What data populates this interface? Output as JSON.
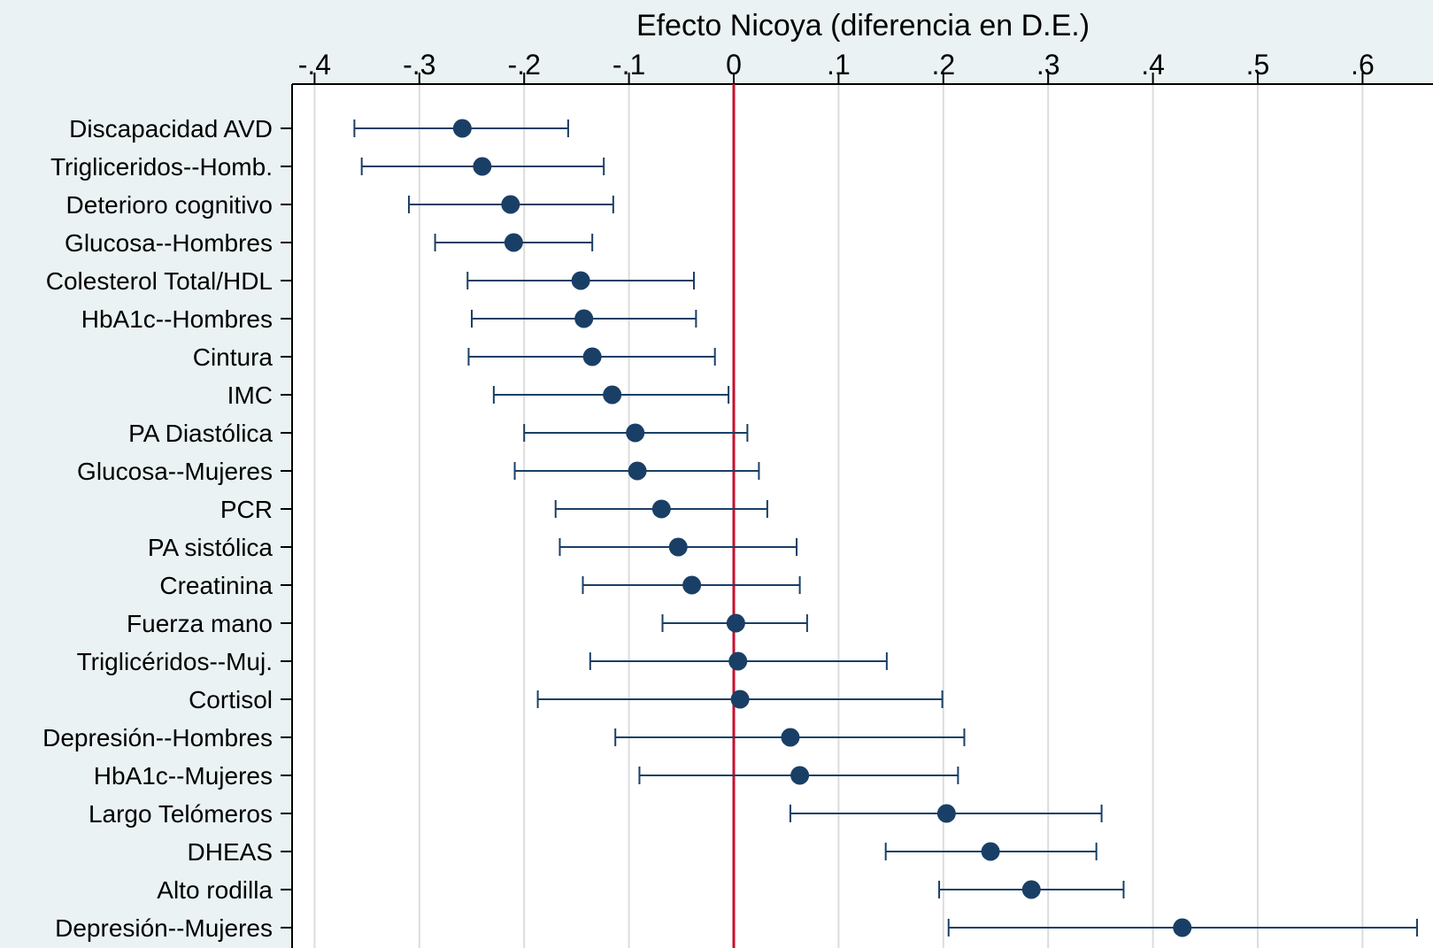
{
  "chart_data": {
    "type": "scatter",
    "title": "Efecto Nicoya (diferencia en D.E.)",
    "xlabel": "",
    "ylabel": "",
    "xlim": [
      -0.42,
      0.67
    ],
    "x_ticks": [
      -0.4,
      -0.3,
      -0.2,
      -0.1,
      0,
      0.1,
      0.2,
      0.3,
      0.4,
      0.5,
      0.6
    ],
    "x_tick_labels": [
      "-.4",
      "-.3",
      "-.2",
      "-.1",
      "0",
      ".1",
      ".2",
      ".3",
      ".4",
      ".5",
      ".6"
    ],
    "grid": true,
    "reference_line": 0,
    "categories": [
      "Discapacidad AVD",
      "Trigliceridos--Homb.",
      "Deterioro cognitivo",
      "Glucosa--Hombres",
      "Colesterol Total/HDL",
      "HbA1c--Hombres",
      "Cintura",
      "IMC",
      "PA Diastólica",
      "Glucosa--Mujeres",
      "PCR",
      "PA sistólica",
      "Creatinina",
      "Fuerza mano",
      "Triglicéridos--Muj.",
      "Cortisol",
      "Depresión--Hombres",
      "HbA1c--Mujeres",
      "Largo Telómeros",
      "DHEAS",
      "Alto rodilla",
      "Depresión--Mujeres"
    ],
    "estimates": [
      -0.259,
      -0.24,
      -0.213,
      -0.21,
      -0.146,
      -0.143,
      -0.135,
      -0.116,
      -0.094,
      -0.092,
      -0.069,
      -0.053,
      -0.04,
      0.002,
      0.004,
      0.006,
      0.054,
      0.063,
      0.203,
      0.245,
      0.284,
      0.428
    ],
    "ci_low": [
      -0.362,
      -0.355,
      -0.31,
      -0.285,
      -0.254,
      -0.25,
      -0.253,
      -0.229,
      -0.2,
      -0.209,
      -0.17,
      -0.166,
      -0.144,
      -0.068,
      -0.137,
      -0.187,
      -0.113,
      -0.09,
      0.054,
      0.145,
      0.196,
      0.205
    ],
    "ci_high": [
      -0.158,
      -0.124,
      -0.115,
      -0.135,
      -0.038,
      -0.036,
      -0.018,
      -0.005,
      0.013,
      0.024,
      0.032,
      0.06,
      0.063,
      0.07,
      0.146,
      0.199,
      0.22,
      0.214,
      0.351,
      0.346,
      0.372,
      0.652
    ]
  },
  "colors": {
    "background": "#eaf2f3",
    "plot_background": "#ffffff",
    "marker": "#1a3f66",
    "reference_line": "#c8102e",
    "grid": "#dcdcdc",
    "axis": "#000000"
  }
}
